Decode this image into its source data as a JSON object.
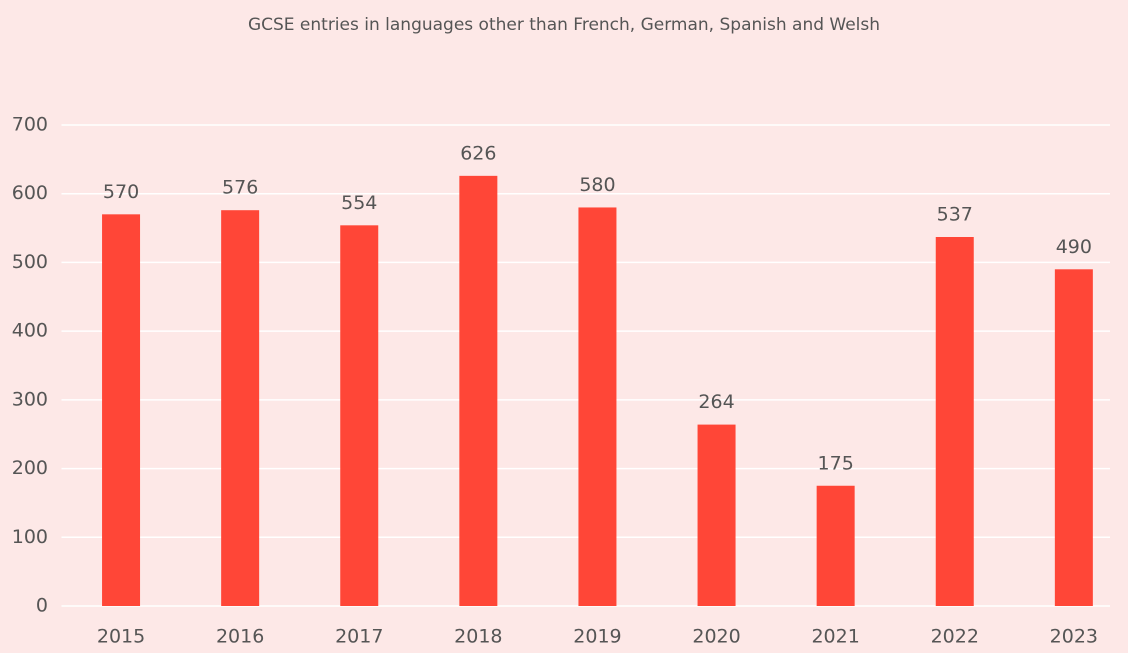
{
  "chart_data": {
    "type": "bar",
    "title": "GCSE entries in languages other than French, German, Spanish and Welsh",
    "categories": [
      "2015",
      "2016",
      "2017",
      "2018",
      "2019",
      "2020",
      "2021",
      "2022",
      "2023"
    ],
    "values": [
      570,
      576,
      554,
      626,
      580,
      264,
      175,
      537,
      490
    ],
    "color": "#ff4637",
    "ylim": [
      0,
      700
    ],
    "yticks": [
      0,
      100,
      200,
      300,
      400,
      500,
      600,
      700
    ],
    "grid": true
  }
}
